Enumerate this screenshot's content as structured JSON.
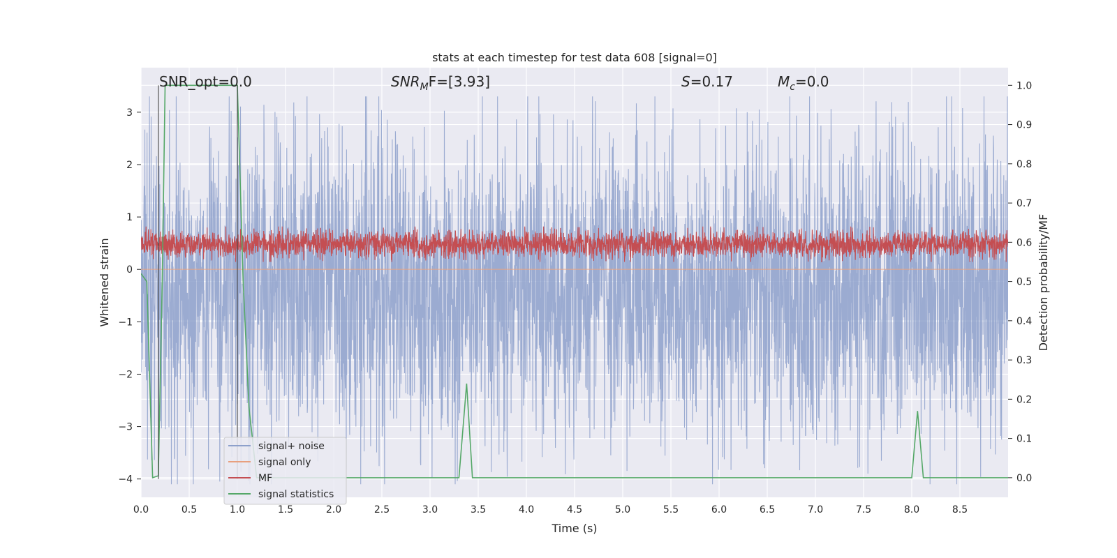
{
  "chart_data": {
    "type": "line",
    "title": "stats at each timestep for test data 608 [signal=0]",
    "xlabel": "Time (s)",
    "ylabel": "Whitened strain",
    "ylabel_right": "Detection probability/MF",
    "xlim": [
      0.0,
      9.0
    ],
    "ylim": [
      -4.35,
      3.85
    ],
    "ylim_right": [
      -0.05,
      1.045
    ],
    "x_ticks": [
      "0.0",
      "0.5",
      "1.0",
      "1.5",
      "2.0",
      "2.5",
      "3.0",
      "3.5",
      "4.0",
      "4.5",
      "5.0",
      "5.5",
      "6.0",
      "6.5",
      "7.0",
      "7.5",
      "8.0",
      "8.5"
    ],
    "y_ticks": [
      "3",
      "2",
      "1",
      "0",
      "−1",
      "−2",
      "−3",
      "−4"
    ],
    "y_right_ticks": [
      "1.0",
      "0.9",
      "0.8",
      "0.7",
      "0.6",
      "0.5",
      "0.4",
      "0.3",
      "0.2",
      "0.1",
      "0.0"
    ],
    "annotations": {
      "snr_opt": "SNR_opt=0.0",
      "snr_mf_sym": "SNR",
      "snr_mf_sub": "M",
      "snr_mf_rest": "F=[3.93]",
      "s_sym": "S",
      "s_rest": "=0.17",
      "mc_sym": "M",
      "mc_sub": "c",
      "mc_rest": "=0.0"
    },
    "vertical_lines_x": [
      0.18,
      1.0
    ],
    "legend": {
      "placement": "lower-left",
      "entries": [
        {
          "label": "signal+ noise",
          "color": "#8da0cb"
        },
        {
          "label": "signal only",
          "color": "#e8a07e"
        },
        {
          "label": "MF",
          "color": "#c44e52"
        },
        {
          "label": "signal statistics",
          "color": "#55a868"
        }
      ]
    },
    "series": [
      {
        "name": "signal+ noise",
        "axis": "left",
        "style": "dense-noise",
        "color": "#8da0cb",
        "approx_range": [
          -4.1,
          3.3
        ]
      },
      {
        "name": "signal only",
        "axis": "left",
        "style": "flat",
        "color": "#e8a07e",
        "value": 0.0
      },
      {
        "name": "MF",
        "axis": "right",
        "style": "dense-noise",
        "color": "#c44e52",
        "approx_range": [
          0.55,
          0.64
        ]
      },
      {
        "name": "signal statistics",
        "axis": "right",
        "color": "#55a868",
        "x": [
          0.0,
          0.06,
          0.12,
          0.18,
          0.22,
          0.25,
          0.3,
          0.4,
          0.6,
          0.8,
          0.94,
          1.0,
          1.06,
          1.12,
          1.2,
          1.4,
          2.0,
          2.5,
          3.0,
          3.3,
          3.38,
          3.44,
          3.6,
          4.0,
          5.0,
          6.0,
          7.0,
          7.5,
          8.0,
          8.06,
          8.12,
          8.2,
          8.5,
          9.0
        ],
        "y": [
          0.52,
          0.5,
          0.0,
          0.005,
          0.5,
          1.0,
          1.0,
          1.0,
          1.0,
          1.0,
          1.0,
          1.0,
          0.5,
          0.18,
          0.0,
          0.0,
          0.0,
          0.0,
          0.0,
          0.0,
          0.24,
          0.0,
          0.0,
          0.0,
          0.0,
          0.0,
          0.0,
          0.0,
          0.0,
          0.17,
          0.0,
          0.0,
          0.0,
          0.0
        ]
      }
    ]
  }
}
